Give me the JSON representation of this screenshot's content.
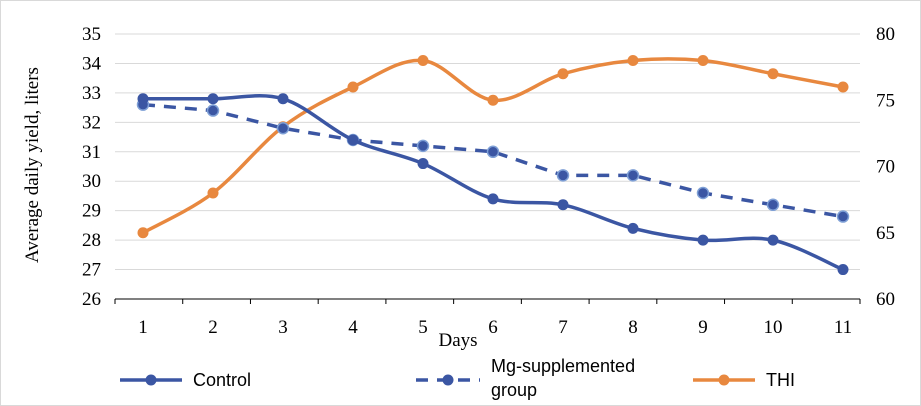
{
  "chart_data": {
    "type": "line",
    "title": "",
    "xlabel": "Days",
    "ylabel": "Average daily yield, liters",
    "categories": [
      "1",
      "2",
      "3",
      "4",
      "5",
      "6",
      "7",
      "8",
      "9",
      "10",
      "11"
    ],
    "x": [
      1,
      2,
      3,
      4,
      5,
      6,
      7,
      8,
      9,
      10,
      11
    ],
    "ylim": [
      26,
      35
    ],
    "yticks": [
      26,
      27,
      28,
      29,
      30,
      31,
      32,
      33,
      34,
      35
    ],
    "y2lim": [
      60,
      80
    ],
    "y2ticks": [
      60,
      65,
      70,
      75,
      80
    ],
    "grid": true,
    "legend_position": "bottom",
    "series": [
      {
        "name": "Control",
        "axis": "left",
        "style": "solid",
        "smooth": true,
        "color": "#3b56a3",
        "values": [
          32.8,
          32.8,
          32.8,
          31.4,
          30.6,
          29.4,
          29.2,
          28.4,
          28.0,
          28.0,
          27.0
        ]
      },
      {
        "name": "Mg-supplemented group",
        "legend_lines": [
          "Mg-supplemented",
          "group"
        ],
        "axis": "left",
        "style": "dashed",
        "smooth": false,
        "color": "#3b56a3",
        "values": [
          32.6,
          32.4,
          31.8,
          31.4,
          31.2,
          31.0,
          30.2,
          30.2,
          29.6,
          29.2,
          28.8
        ]
      },
      {
        "name": "THI",
        "axis": "right",
        "style": "solid",
        "smooth": true,
        "color": "#e8883f",
        "values": [
          65,
          68,
          73,
          76,
          78,
          75,
          77,
          78,
          78,
          77,
          76
        ]
      }
    ]
  }
}
